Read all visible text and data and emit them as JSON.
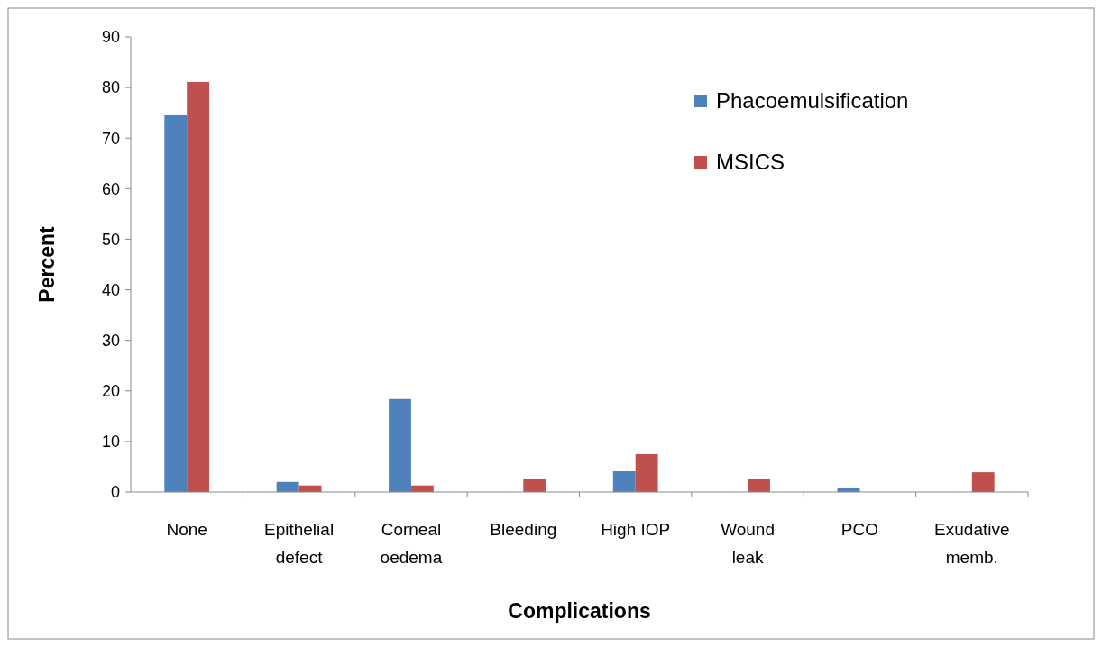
{
  "chart_data": {
    "type": "bar",
    "xlabel": "Complications",
    "ylabel": "Percent",
    "categories": [
      "None",
      "Epithelial defect",
      "Corneal oedema",
      "Bleeding",
      "High IOP",
      "Wound leak",
      "PCO",
      "Exudative memb."
    ],
    "series": [
      {
        "name": "Phacoemulsification",
        "color": "#4f81bd",
        "values": [
          74.5,
          2,
          18.4,
          0,
          4.1,
          0,
          0.9,
          0
        ]
      },
      {
        "name": "MSICS",
        "color": "#c0504d",
        "values": [
          81.1,
          1.3,
          1.3,
          2.5,
          7.5,
          2.5,
          0,
          3.9
        ]
      }
    ],
    "ylim": [
      0,
      90
    ],
    "yticks": [
      0,
      10,
      20,
      30,
      40,
      50,
      60,
      70,
      80,
      90
    ],
    "grid": false,
    "legend": "top right"
  }
}
